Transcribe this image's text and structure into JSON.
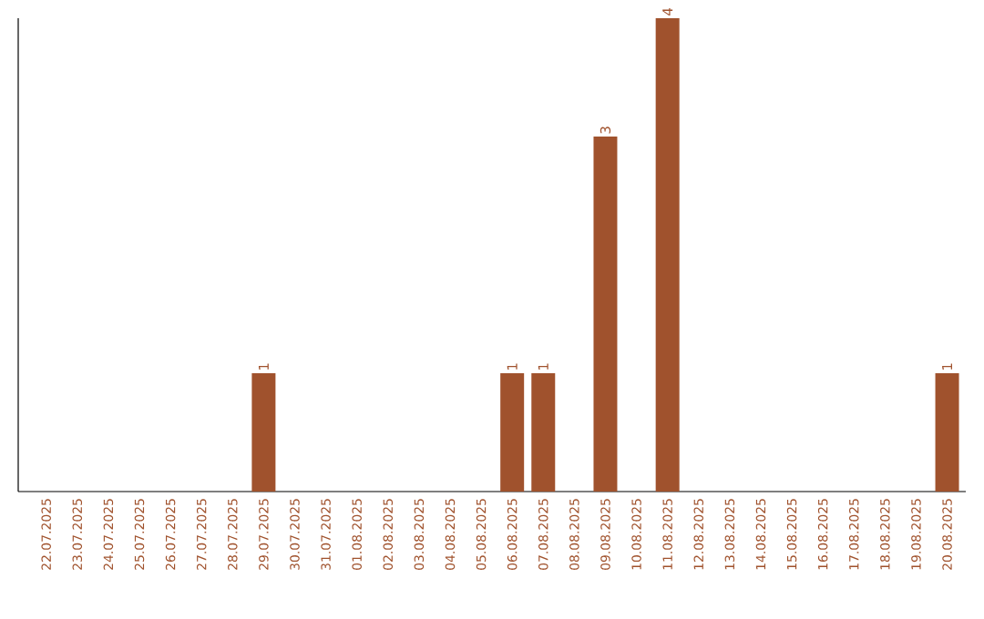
{
  "chart_data": {
    "type": "bar",
    "categories": [
      "22.07.2025",
      "23.07.2025",
      "24.07.2025",
      "25.07.2025",
      "26.07.2025",
      "27.07.2025",
      "28.07.2025",
      "29.07.2025",
      "30.07.2025",
      "31.07.2025",
      "01.08.2025",
      "02.08.2025",
      "03.08.2025",
      "04.08.2025",
      "05.08.2025",
      "06.08.2025",
      "07.08.2025",
      "08.08.2025",
      "09.08.2025",
      "10.08.2025",
      "11.08.2025",
      "12.08.2025",
      "13.08.2025",
      "14.08.2025",
      "15.08.2025",
      "16.08.2025",
      "17.08.2025",
      "18.08.2025",
      "19.08.2025",
      "20.08.2025"
    ],
    "values": [
      0,
      0,
      0,
      0,
      0,
      0,
      0,
      1,
      0,
      0,
      0,
      0,
      0,
      0,
      0,
      1,
      1,
      0,
      3,
      0,
      4,
      0,
      0,
      0,
      0,
      0,
      0,
      0,
      0,
      1
    ],
    "value_labels": [
      null,
      null,
      null,
      null,
      null,
      null,
      null,
      "1",
      null,
      null,
      null,
      null,
      null,
      null,
      null,
      "1",
      "1",
      null,
      "3",
      null,
      "4",
      null,
      null,
      null,
      null,
      null,
      null,
      null,
      null,
      "1"
    ],
    "color": "#a0522d"
  }
}
